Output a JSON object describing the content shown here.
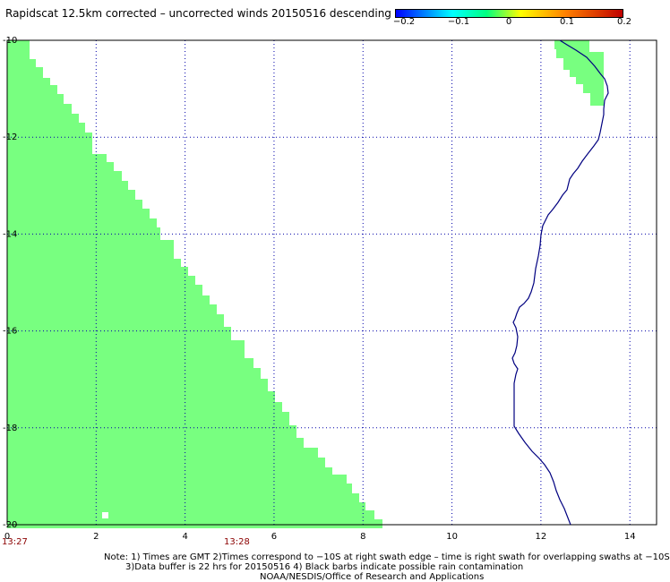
{
  "title": "Rapidscat 12.5km corrected – uncorrected winds 20150516 descending",
  "colorbar": {
    "ticks": [
      "−0.2",
      "−0.1",
      "0",
      "0.1",
      "0.2"
    ],
    "colors": [
      "#0000ff",
      "#00ffff",
      "#00ff80",
      "#ffff00",
      "#ff8000",
      "#c00000"
    ]
  },
  "axes": {
    "x_ticks": [
      "0",
      "2",
      "4",
      "6",
      "8",
      "10",
      "12",
      "14"
    ],
    "y_ticks": [
      "-10",
      "-12",
      "-14",
      "-16",
      "-18",
      "-20"
    ],
    "xlim": [
      0,
      14.6
    ],
    "ylim": [
      -20,
      -10
    ],
    "grid": true
  },
  "times": [
    "13:27",
    "13:28"
  ],
  "swath_color": "#78ff80",
  "coastline_color": "#000080",
  "notes": [
    "Note: 1) Times are GMT 2)Times correspond to −10S at right swath edge – time is right swath for overlapping swaths at −10S",
    "3)Data buffer is 22 hrs for 20150516 4) Black barbs indicate possible rain contamination",
    "NOAA/NESDIS/Office of Research and Applications"
  ]
}
